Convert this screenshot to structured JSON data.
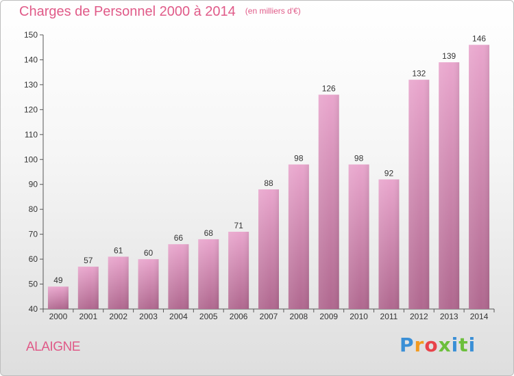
{
  "header": {
    "title": "Charges de Personnel 2000 à 2014",
    "unit": "(en milliers d'€)"
  },
  "footer": {
    "commune": "ALAIGNE",
    "logo": "Proxiti"
  },
  "colors": {
    "title": "#e05a88",
    "bar_top": "#e9a6cd",
    "bar_bottom": "#b0688f",
    "axis": "#555555"
  },
  "chart_data": {
    "type": "bar",
    "title": "Charges de Personnel 2000 à 2014",
    "subtitle": "(en milliers d'€)",
    "xlabel": "",
    "ylabel": "",
    "categories": [
      "2000",
      "2001",
      "2002",
      "2003",
      "2004",
      "2005",
      "2006",
      "2007",
      "2008",
      "2009",
      "2010",
      "2011",
      "2012",
      "2013",
      "2014"
    ],
    "values": [
      49,
      57,
      61,
      60,
      66,
      68,
      71,
      88,
      98,
      126,
      98,
      92,
      132,
      139,
      146
    ],
    "ylim": [
      40,
      150
    ],
    "yticks": [
      40,
      50,
      60,
      70,
      80,
      90,
      100,
      110,
      120,
      130,
      140,
      150
    ],
    "grid": false,
    "legend": "none"
  }
}
